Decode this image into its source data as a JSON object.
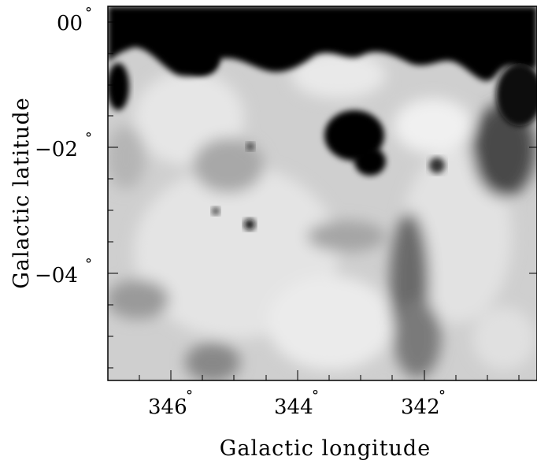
{
  "figure": {
    "image_description_free": true,
    "tick_labels_y": [
      "00",
      "−02",
      "−04"
    ],
    "tick_labels_x": [
      "346",
      "344",
      "342"
    ],
    "degree_symbol": "°",
    "xlabel": "Galactic longitude",
    "ylabel": "Galactic latitude"
  },
  "chart_data": {
    "type": "heatmap",
    "xlabel": "Galactic longitude",
    "ylabel": "Galactic latitude",
    "x_ticks": [
      346,
      344,
      342
    ],
    "y_ticks": [
      0,
      -2,
      -4
    ],
    "x_range": [
      347.1,
      340.3
    ],
    "y_range": [
      0.0,
      -5.6
    ],
    "colormap": "grayscale",
    "colors": {
      "frame": "#000000",
      "background": "#ffffff"
    }
  }
}
